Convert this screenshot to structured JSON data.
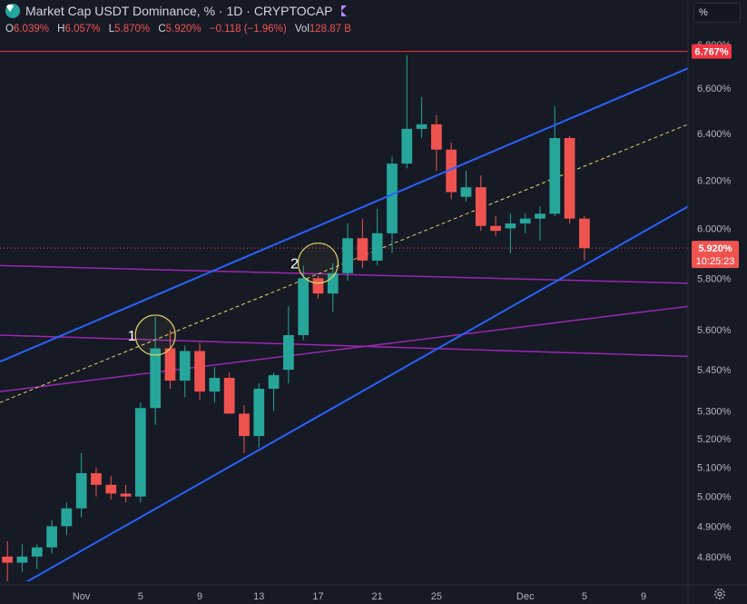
{
  "header": {
    "title": "Market Cap USDT Dominance, % · 1D · CRYPTOCAP",
    "unit_button": "%"
  },
  "ohlc": {
    "open_key": "O",
    "open": "6.039%",
    "high_key": "H",
    "high": "6.057%",
    "low_key": "L",
    "low": "5.870%",
    "close_key": "C",
    "close": "5.920%",
    "change": "−0.118 (−1.96%)",
    "vol_key": "Vol",
    "vol": "128.87 B"
  },
  "colors": {
    "background": "#161a25",
    "up": "#26a69a",
    "down": "#ef5350",
    "channel": "#2962ff",
    "midline": "#e6d36a",
    "purple": "#9c27b0",
    "resistance": "#f23645"
  },
  "chart_data": {
    "type": "candlestick",
    "y_axis": {
      "ticks": [
        "6.800%",
        "6.600%",
        "6.400%",
        "6.200%",
        "6.000%",
        "5.800%",
        "5.600%",
        "5.450%",
        "5.300%",
        "5.200%",
        "5.100%",
        "5.000%",
        "4.900%",
        "4.800%"
      ],
      "tick_values": [
        6.8,
        6.6,
        6.4,
        6.2,
        6.0,
        5.8,
        5.6,
        5.45,
        5.3,
        5.2,
        5.1,
        5.0,
        4.9,
        4.8
      ],
      "scale": "log",
      "range": [
        4.72,
        6.82
      ]
    },
    "x_axis": {
      "ticks": [
        "Nov",
        "5",
        "9",
        "13",
        "17",
        "21",
        "25",
        "Dec",
        "5",
        "9"
      ],
      "tick_days": [
        0,
        4,
        8,
        12,
        16,
        20,
        24,
        30,
        34,
        38
      ],
      "range": [
        -5.5,
        41
      ]
    },
    "candles": [
      {
        "d": -5,
        "o": 4.8,
        "h": 4.85,
        "l": 4.72,
        "c": 4.78
      },
      {
        "d": -4,
        "o": 4.78,
        "h": 4.84,
        "l": 4.75,
        "c": 4.8
      },
      {
        "d": -3,
        "o": 4.8,
        "h": 4.84,
        "l": 4.76,
        "c": 4.83
      },
      {
        "d": -2,
        "o": 4.83,
        "h": 4.92,
        "l": 4.81,
        "c": 4.9
      },
      {
        "d": -1,
        "o": 4.9,
        "h": 4.98,
        "l": 4.87,
        "c": 4.96
      },
      {
        "d": 0,
        "o": 4.96,
        "h": 5.15,
        "l": 4.93,
        "c": 5.08
      },
      {
        "d": 1,
        "o": 5.08,
        "h": 5.1,
        "l": 5.0,
        "c": 5.04
      },
      {
        "d": 2,
        "o": 5.04,
        "h": 5.07,
        "l": 4.99,
        "c": 5.01
      },
      {
        "d": 3,
        "o": 5.01,
        "h": 5.04,
        "l": 4.98,
        "c": 5.0
      },
      {
        "d": 4,
        "o": 5.0,
        "h": 5.33,
        "l": 4.98,
        "c": 5.31
      },
      {
        "d": 5,
        "o": 5.31,
        "h": 5.65,
        "l": 5.25,
        "c": 5.53
      },
      {
        "d": 6,
        "o": 5.53,
        "h": 5.6,
        "l": 5.38,
        "c": 5.41
      },
      {
        "d": 7,
        "o": 5.41,
        "h": 5.54,
        "l": 5.35,
        "c": 5.52
      },
      {
        "d": 8,
        "o": 5.52,
        "h": 5.55,
        "l": 5.34,
        "c": 5.37
      },
      {
        "d": 9,
        "o": 5.37,
        "h": 5.46,
        "l": 5.33,
        "c": 5.42
      },
      {
        "d": 10,
        "o": 5.42,
        "h": 5.44,
        "l": 5.29,
        "c": 5.29
      },
      {
        "d": 11,
        "o": 5.29,
        "h": 5.32,
        "l": 5.15,
        "c": 5.21
      },
      {
        "d": 12,
        "o": 5.21,
        "h": 5.4,
        "l": 5.17,
        "c": 5.38
      },
      {
        "d": 13,
        "o": 5.38,
        "h": 5.44,
        "l": 5.3,
        "c": 5.43
      },
      {
        "d": 14,
        "o": 5.45,
        "h": 5.69,
        "l": 5.4,
        "c": 5.58
      },
      {
        "d": 15,
        "o": 5.58,
        "h": 5.85,
        "l": 5.56,
        "c": 5.8
      },
      {
        "d": 16,
        "o": 5.8,
        "h": 5.81,
        "l": 5.72,
        "c": 5.74
      },
      {
        "d": 17,
        "o": 5.74,
        "h": 5.86,
        "l": 5.67,
        "c": 5.82
      },
      {
        "d": 18,
        "o": 5.82,
        "h": 6.02,
        "l": 5.79,
        "c": 5.96
      },
      {
        "d": 19,
        "o": 5.96,
        "h": 6.04,
        "l": 5.84,
        "c": 5.87
      },
      {
        "d": 20,
        "o": 5.87,
        "h": 6.08,
        "l": 5.85,
        "c": 5.98
      },
      {
        "d": 21,
        "o": 5.98,
        "h": 6.3,
        "l": 5.9,
        "c": 6.27
      },
      {
        "d": 22,
        "o": 6.27,
        "h": 6.75,
        "l": 6.25,
        "c": 6.42
      },
      {
        "d": 23,
        "o": 6.42,
        "h": 6.56,
        "l": 6.38,
        "c": 6.44
      },
      {
        "d": 24,
        "o": 6.44,
        "h": 6.48,
        "l": 6.24,
        "c": 6.33
      },
      {
        "d": 25,
        "o": 6.33,
        "h": 6.36,
        "l": 6.12,
        "c": 6.15
      },
      {
        "d": 26,
        "o": 6.13,
        "h": 6.24,
        "l": 6.11,
        "c": 6.17
      },
      {
        "d": 27,
        "o": 6.17,
        "h": 6.22,
        "l": 5.99,
        "c": 6.01
      },
      {
        "d": 28,
        "o": 6.01,
        "h": 6.05,
        "l": 5.97,
        "c": 5.99
      },
      {
        "d": 29,
        "o": 6.0,
        "h": 6.06,
        "l": 5.9,
        "c": 6.02
      },
      {
        "d": 30,
        "o": 6.02,
        "h": 6.06,
        "l": 5.98,
        "c": 6.04
      },
      {
        "d": 31,
        "o": 6.04,
        "h": 6.09,
        "l": 5.95,
        "c": 6.06
      },
      {
        "d": 32,
        "o": 6.06,
        "h": 6.52,
        "l": 6.05,
        "c": 6.38
      },
      {
        "d": 33,
        "o": 6.38,
        "h": 6.39,
        "l": 6.02,
        "c": 6.04
      },
      {
        "d": 34,
        "o": 6.04,
        "h": 6.05,
        "l": 5.87,
        "c": 5.92
      }
    ],
    "drawings": {
      "channel_upper": [
        [
          -5.5,
          5.48
        ],
        [
          41,
          6.69
        ]
      ],
      "channel_lower": [
        [
          -5.5,
          4.67
        ],
        [
          41,
          6.09
        ]
      ],
      "channel_mid": [
        [
          -5.5,
          5.33
        ],
        [
          41,
          6.44
        ]
      ],
      "purple_upper": [
        [
          -5.5,
          5.85
        ],
        [
          41,
          5.78
        ]
      ],
      "purple_lower": [
        [
          -5.5,
          5.58
        ],
        [
          41,
          5.5
        ]
      ],
      "purple_rising": [
        [
          -5.5,
          5.37
        ],
        [
          41,
          5.69
        ]
      ],
      "resistance_level": 6.767,
      "last_price": 5.92
    },
    "annotations": [
      {
        "label": "1",
        "d": 5,
        "v": 5.58
      },
      {
        "label": "2",
        "d": 16,
        "v": 5.86
      }
    ],
    "price_labels": {
      "resistance": "6.767%",
      "last": "5.920%",
      "countdown": "10:25:23"
    }
  }
}
